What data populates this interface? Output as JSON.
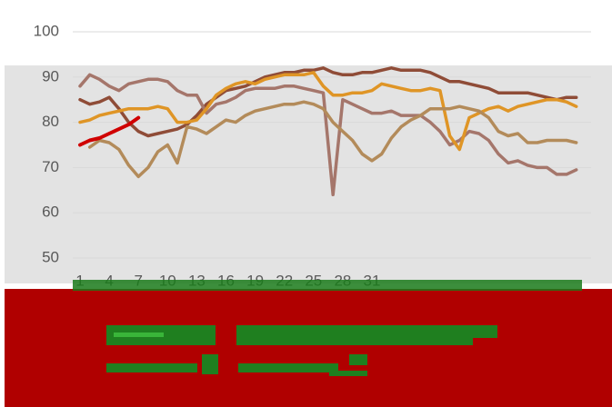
{
  "chart_data": {
    "type": "line",
    "categories": [
      "1",
      null,
      null,
      "4",
      null,
      null,
      "7",
      null,
      null,
      "10",
      null,
      null,
      "13",
      null,
      null,
      "16",
      null,
      null,
      "19",
      null,
      null,
      "22",
      null,
      null,
      "25",
      null,
      null,
      "28",
      null,
      null,
      "31",
      null,
      null,
      null,
      null,
      null,
      null,
      null,
      null,
      null,
      null,
      null,
      null,
      null,
      null,
      null,
      null,
      null,
      null,
      null,
      null,
      null
    ],
    "series": [
      {
        "color": "#8f4c37",
        "values": [
          85,
          84,
          84.5,
          85.5,
          83,
          80,
          78,
          77,
          77.5,
          78,
          78.5,
          79.5,
          81.5,
          84,
          85.5,
          87,
          87.5,
          88,
          89,
          90,
          90.5,
          91,
          91,
          91.5,
          91.5,
          92,
          91,
          90.5,
          90.5,
          91,
          91,
          91.5,
          92,
          91.5,
          91.5,
          91.5,
          91,
          90,
          89,
          89,
          88.5,
          88,
          87.5,
          86.5,
          86.5,
          86.5,
          86.5,
          86,
          85.5,
          85,
          85.5,
          85.5
        ]
      },
      {
        "color": "#a5766b",
        "values": [
          88,
          90.5,
          89.5,
          88,
          87,
          88.5,
          89,
          89.5,
          89.5,
          89,
          87,
          86,
          86,
          82,
          84,
          84.5,
          85.5,
          87,
          87.5,
          87.5,
          87.5,
          88,
          88,
          87.5,
          87,
          86.5,
          64,
          85,
          84,
          83,
          82,
          82,
          82.5,
          81.5,
          81.5,
          81.5,
          80,
          78,
          75,
          76,
          78,
          77.5,
          76,
          73,
          71,
          71.5,
          70.5,
          70,
          70,
          68.5,
          68.5,
          69.5
        ]
      },
      {
        "color": "#df9526",
        "values": [
          80,
          80.5,
          81.5,
          82,
          82.5,
          83,
          83,
          83,
          83.5,
          83,
          80,
          80,
          80.5,
          83,
          86,
          87.5,
          88.5,
          89,
          88.5,
          89.5,
          90,
          90.5,
          90.5,
          90.5,
          91,
          88,
          86,
          86,
          86.5,
          86.5,
          87,
          88.5,
          88,
          87.5,
          87,
          87,
          87.5,
          87,
          77,
          74,
          81,
          82,
          83,
          83.5,
          82.5,
          83.5,
          84,
          84.5,
          85,
          85,
          84.5,
          83.5
        ]
      },
      {
        "color": "#b38b5a",
        "values": [
          null,
          74.5,
          76,
          75.5,
          74,
          70.5,
          68,
          70,
          73.5,
          75,
          71,
          79,
          78.5,
          77.5,
          79,
          80.5,
          80,
          81.5,
          82.5,
          83,
          83.5,
          84,
          84,
          84.5,
          84,
          83,
          80,
          78,
          76,
          73,
          71.5,
          73,
          76.5,
          79,
          80.5,
          81.5,
          83,
          83,
          83,
          83.5,
          83,
          82.5,
          81,
          78,
          77,
          77.5,
          75.5,
          75.5,
          76,
          76,
          76,
          75.5
        ]
      },
      {
        "color": "#d00000",
        "values": [
          75,
          76,
          76.5,
          77.5,
          78.5,
          79.5,
          81,
          null,
          null,
          null,
          null,
          null,
          null,
          null,
          null,
          null,
          null,
          null,
          null,
          null,
          null,
          null,
          null,
          null,
          null,
          null,
          null,
          null,
          null,
          null,
          null,
          null,
          null,
          null,
          null,
          null,
          null,
          null,
          null,
          null,
          null,
          null,
          null,
          null,
          null,
          null,
          null,
          null,
          null,
          null,
          null,
          null
        ]
      }
    ],
    "ylim": [
      50,
      100
    ],
    "yticks": [
      50,
      60,
      70,
      80,
      90,
      100
    ],
    "grid": true
  }
}
